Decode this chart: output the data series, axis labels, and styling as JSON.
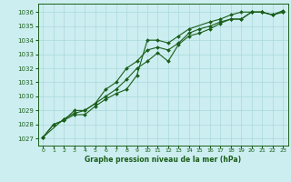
{
  "xlabel": "Graphe pression niveau de la mer (hPa)",
  "bg_color": "#cceef0",
  "grid_color": "#aad8dc",
  "line_color": "#1a5e1a",
  "marker_color": "#1a5e1a",
  "ylim": [
    1026.5,
    1036.6
  ],
  "xlim": [
    -0.5,
    23.5
  ],
  "yticks": [
    1027,
    1028,
    1029,
    1030,
    1031,
    1032,
    1033,
    1034,
    1035,
    1036
  ],
  "xticks": [
    0,
    1,
    2,
    3,
    4,
    5,
    6,
    7,
    8,
    9,
    10,
    11,
    12,
    13,
    14,
    15,
    16,
    17,
    18,
    19,
    20,
    21,
    22,
    23
  ],
  "line1_x": [
    0,
    1,
    2,
    3,
    4,
    5,
    6,
    7,
    8,
    9,
    10,
    11,
    12,
    13,
    14,
    16,
    17,
    18,
    19,
    20,
    21,
    22,
    23
  ],
  "line1_y": [
    1027.1,
    1028.0,
    1028.3,
    1028.7,
    1028.7,
    1029.3,
    1029.8,
    1030.2,
    1030.5,
    1031.5,
    1034.0,
    1034.0,
    1033.8,
    1034.3,
    1034.8,
    1035.3,
    1035.5,
    1035.8,
    1036.0,
    1036.0,
    1036.0,
    1035.8,
    1036.1
  ],
  "line2_x": [
    0,
    1,
    2,
    3,
    4,
    5,
    6,
    7,
    8,
    9,
    10,
    11,
    12,
    13,
    14,
    15,
    16,
    17,
    18,
    19,
    20,
    21,
    22,
    23
  ],
  "line2_y": [
    1027.1,
    1028.0,
    1028.3,
    1029.0,
    1029.0,
    1029.5,
    1030.0,
    1030.5,
    1031.2,
    1032.0,
    1032.5,
    1033.1,
    1032.5,
    1033.7,
    1034.3,
    1034.5,
    1034.8,
    1035.2,
    1035.5,
    1035.5,
    1036.0,
    1036.0,
    1035.8,
    1036.0
  ],
  "line3_x": [
    0,
    2,
    3,
    4,
    5,
    6,
    7,
    8,
    9,
    10,
    11,
    12,
    13,
    14,
    15,
    16,
    17,
    18,
    19,
    20,
    21,
    22,
    23
  ],
  "line3_y": [
    1027.1,
    1028.4,
    1028.8,
    1029.0,
    1029.5,
    1030.5,
    1031.0,
    1032.0,
    1032.5,
    1033.3,
    1033.5,
    1033.3,
    1033.8,
    1034.5,
    1034.8,
    1035.0,
    1035.3,
    1035.5,
    1035.5,
    1036.0,
    1036.0,
    1035.8,
    1036.0
  ]
}
